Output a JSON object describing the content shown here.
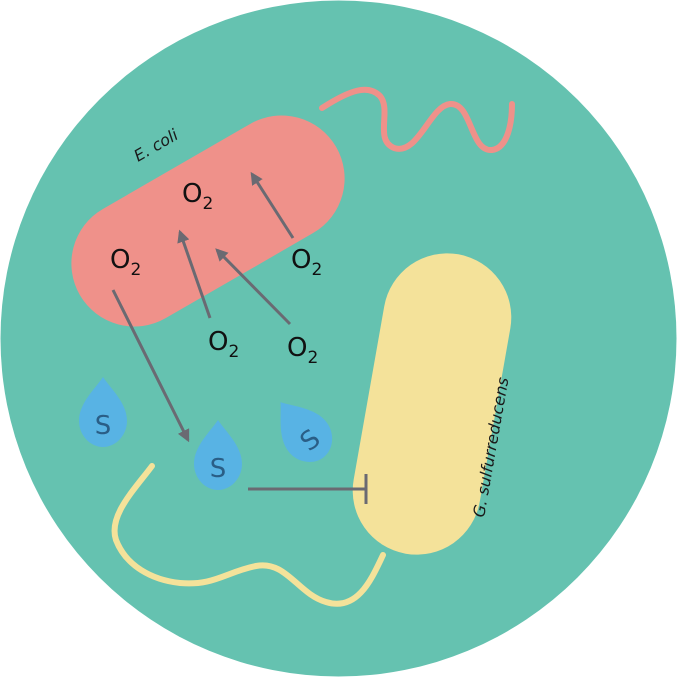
{
  "species": {
    "ecoli": "E. coli",
    "geobacter": "G. sulfurreducens"
  },
  "molecules": {
    "oxygen_symbol": "O",
    "oxygen_subscript": "2",
    "sulfur_symbol": "S"
  },
  "colors": {
    "background_circle": "#65c2b0",
    "ecoli_body": "#ef918a",
    "geobacter_body": "#f4e29a",
    "sulfur_drop": "#58b3e4",
    "arrow": "#6a6a72"
  }
}
